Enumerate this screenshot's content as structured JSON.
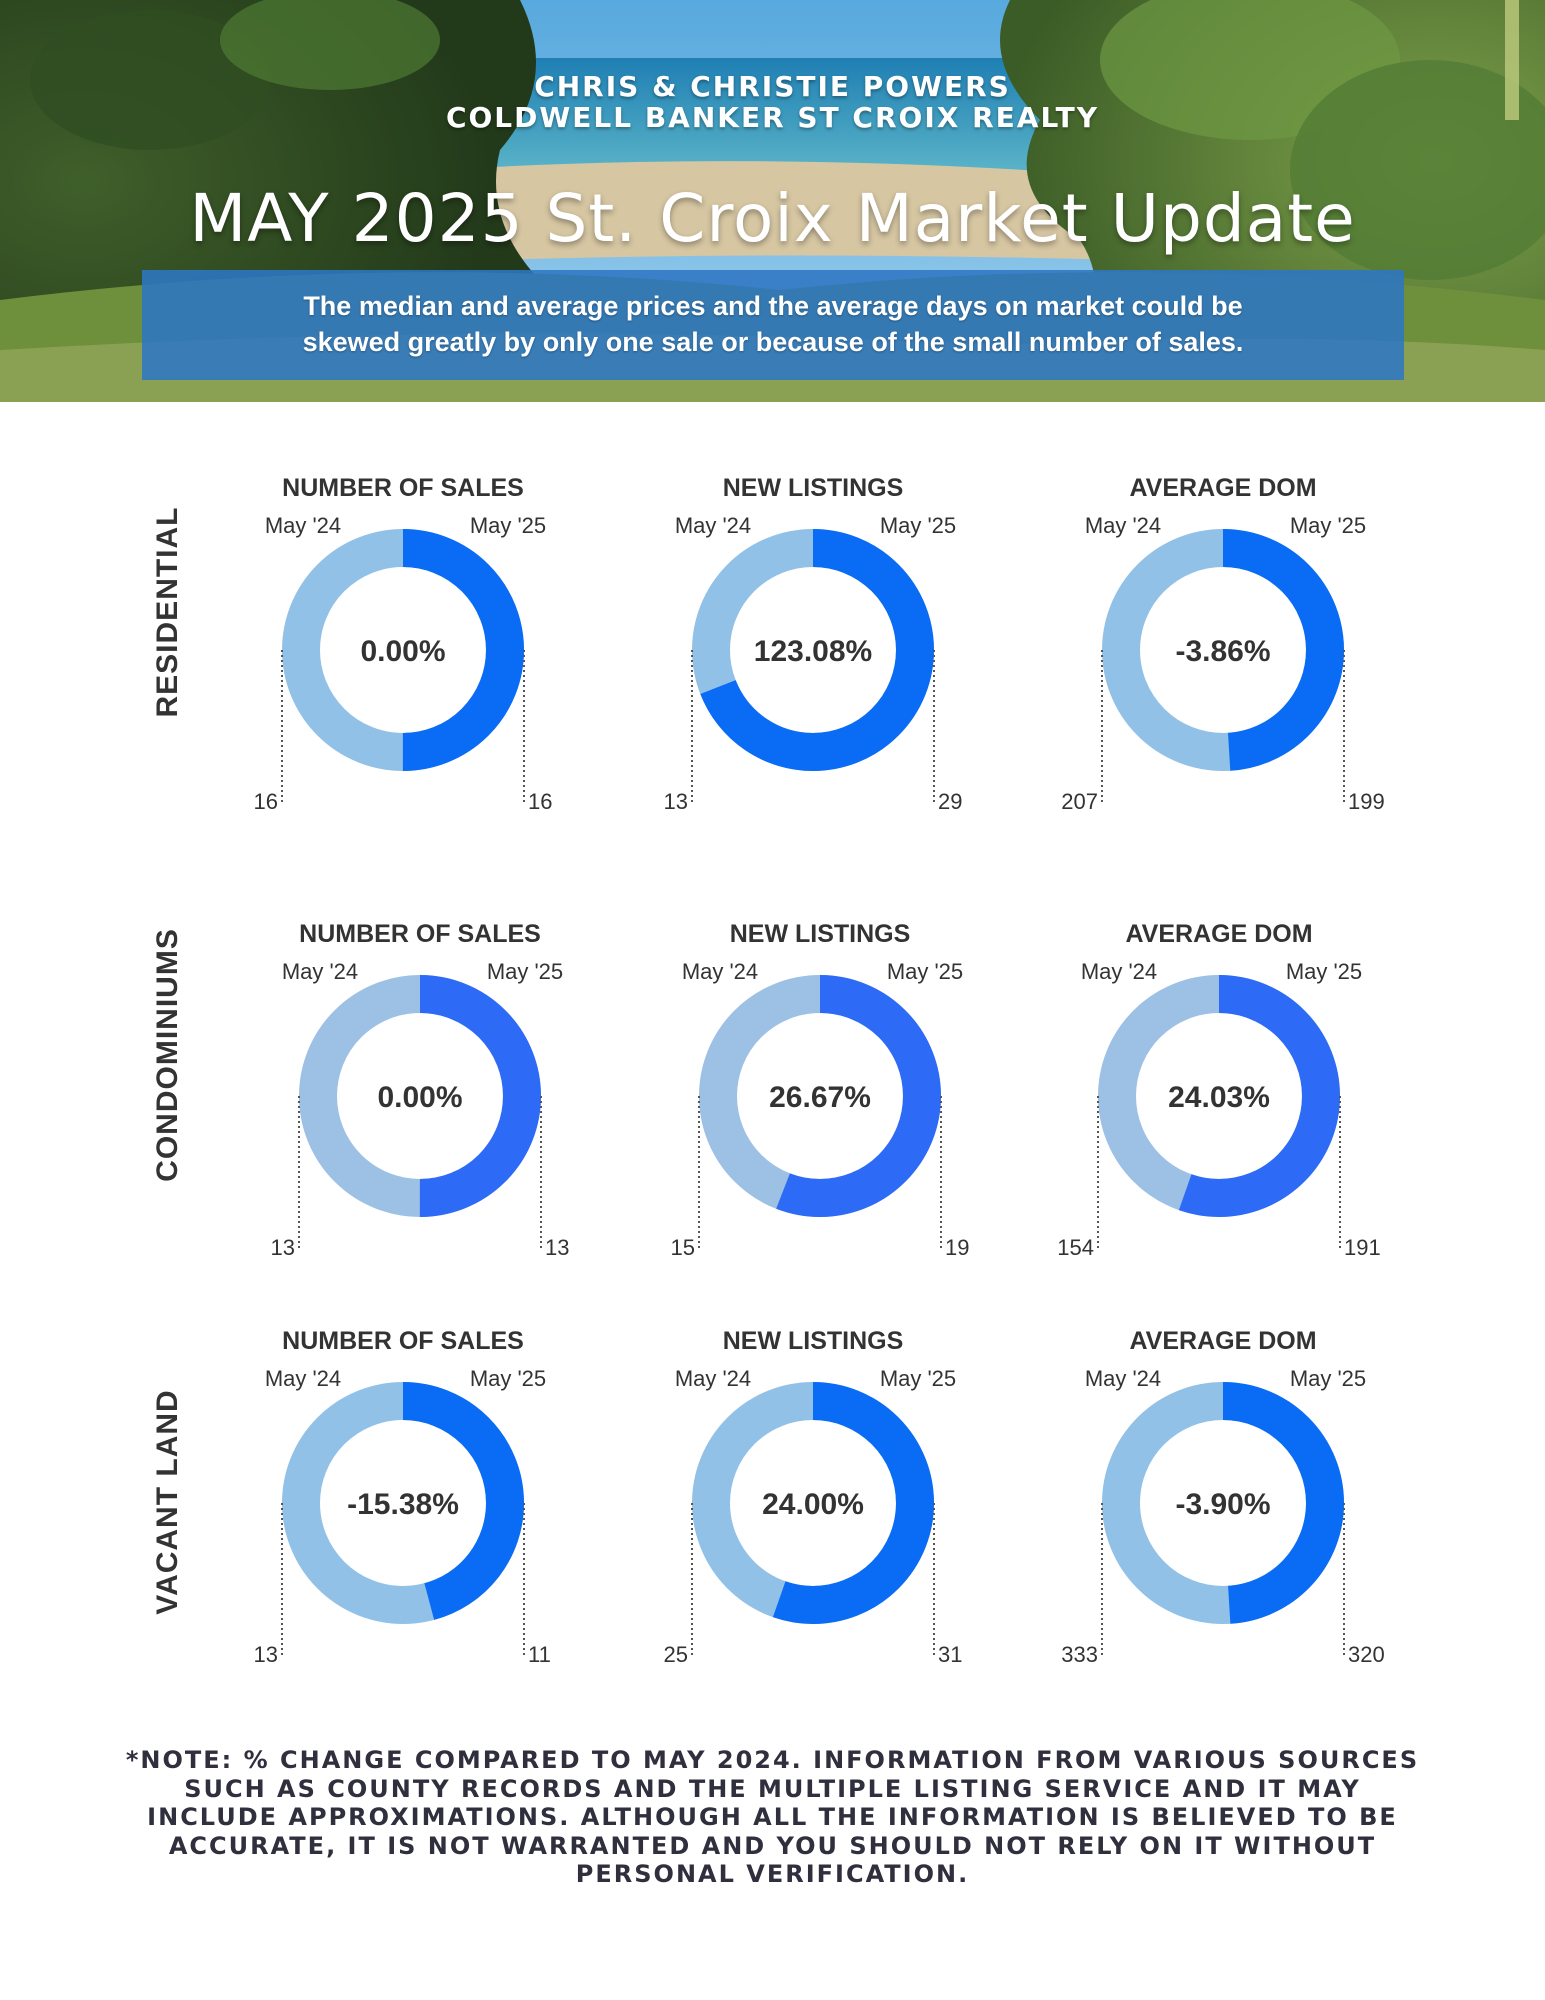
{
  "header": {
    "agent_line1": "CHRIS & CHRISTIE POWERS",
    "agent_line2": "COLDWELL BANKER ST CROIX REALTY",
    "title": "MAY 2025 St. Croix Market Update",
    "disclaimer_line1": "The median and average prices and  the average days on market could be",
    "disclaimer_line2": "skewed greatly by only one sale or because of the small number of sales."
  },
  "colors": {
    "prev_year": "#92c1e8",
    "curr_year": "#0a6cf5",
    "curr_year_condo": "#2d6af6",
    "prev_year_condo": "#9dc0e5",
    "text": "#333333"
  },
  "chart_data": [
    {
      "type": "pie",
      "section": "RESIDENTIAL",
      "title": "NUMBER OF SALES",
      "legend": [
        "May '24",
        "May '25"
      ],
      "categories": [
        "May '24",
        "May '25"
      ],
      "values": [
        16,
        16
      ],
      "center_label": "0.00%"
    },
    {
      "type": "pie",
      "section": "RESIDENTIAL",
      "title": "NEW LISTINGS",
      "legend": [
        "May '24",
        "May '25"
      ],
      "categories": [
        "May '24",
        "May '25"
      ],
      "values": [
        13,
        29
      ],
      "center_label": "123.08%"
    },
    {
      "type": "pie",
      "section": "RESIDENTIAL",
      "title": "AVERAGE DOM",
      "legend": [
        "May '24",
        "May '25"
      ],
      "categories": [
        "May '24",
        "May '25"
      ],
      "values": [
        207,
        199
      ],
      "center_label": "-3.86%"
    },
    {
      "type": "pie",
      "section": "CONDOMINIUMS",
      "title": "NUMBER OF SALES",
      "legend": [
        "May '24",
        "May '25"
      ],
      "categories": [
        "May '24",
        "May '25"
      ],
      "values": [
        13,
        13
      ],
      "center_label": "0.00%"
    },
    {
      "type": "pie",
      "section": "CONDOMINIUMS",
      "title": "NEW LISTINGS",
      "legend": [
        "May '24",
        "May '25"
      ],
      "categories": [
        "May '24",
        "May '25"
      ],
      "values": [
        15,
        19
      ],
      "center_label": "26.67%"
    },
    {
      "type": "pie",
      "section": "CONDOMINIUMS",
      "title": "AVERAGE DOM",
      "legend": [
        "May '24",
        "May '25"
      ],
      "categories": [
        "May '24",
        "May '25"
      ],
      "values": [
        154,
        191
      ],
      "center_label": "24.03%"
    },
    {
      "type": "pie",
      "section": "VACANT LAND",
      "title": "NUMBER OF SALES",
      "legend": [
        "May '24",
        "May '25"
      ],
      "categories": [
        "May '24",
        "May '25"
      ],
      "values": [
        13,
        11
      ],
      "center_label": "-15.38%"
    },
    {
      "type": "pie",
      "section": "VACANT LAND",
      "title": "NEW LISTINGS",
      "legend": [
        "May '24",
        "May '25"
      ],
      "categories": [
        "May '24",
        "May '25"
      ],
      "values": [
        25,
        31
      ],
      "center_label": "24.00%"
    },
    {
      "type": "pie",
      "section": "VACANT LAND",
      "title": "AVERAGE DOM",
      "legend": [
        "May '24",
        "May '25"
      ],
      "categories": [
        "May '24",
        "May '25"
      ],
      "values": [
        333,
        320
      ],
      "center_label": "-3.90%"
    }
  ],
  "footer": {
    "note_line1": "*NOTE: % CHANGE COMPARED TO MAY 2024. INFORMATION FROM VARIOUS SOURCES",
    "note_line2": "SUCH AS COUNTY RECORDS AND THE MULTIPLE LISTING SERVICE AND IT MAY",
    "note_line3": "INCLUDE APPROXIMATIONS. ALTHOUGH ALL THE INFORMATION IS BELIEVED TO BE",
    "note_line4": "ACCURATE, IT IS NOT WARRANTED AND YOU SHOULD NOT RELY ON IT WITHOUT",
    "note_line5": "PERSONAL VERIFICATION."
  }
}
